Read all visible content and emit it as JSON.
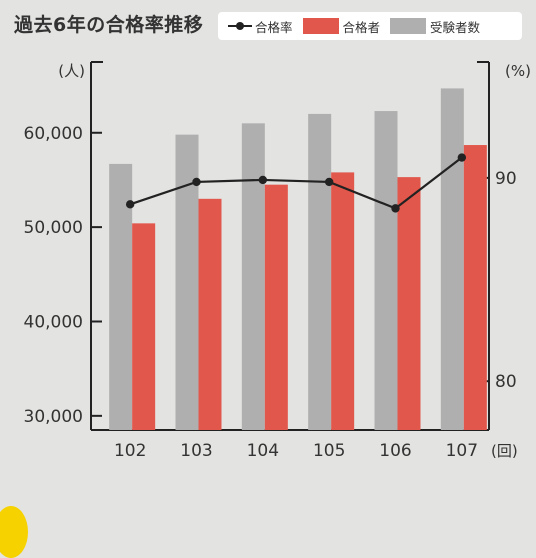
{
  "title": "過去6年の合格率推移",
  "legend": {
    "rate": "合格率",
    "passers": "合格者",
    "examinees": "受験者数"
  },
  "colors": {
    "examinees": "#afafaf",
    "passers": "#e2574c",
    "rate": "#222222",
    "background": "#e3e3e1"
  },
  "chart_data": {
    "type": "bar",
    "categories": [
      "102",
      "103",
      "104",
      "105",
      "106",
      "107"
    ],
    "series": [
      {
        "name": "受験者数",
        "axis": "left",
        "values": [
          56700,
          59800,
          61000,
          62000,
          62300,
          64700
        ]
      },
      {
        "name": "合格者",
        "axis": "left",
        "values": [
          50400,
          53000,
          54500,
          55800,
          55300,
          58700
        ]
      },
      {
        "name": "合格率",
        "type": "line",
        "axis": "right",
        "values": [
          88.7,
          89.8,
          89.9,
          89.8,
          88.5,
          91.0
        ]
      }
    ],
    "xlabel": "(回)",
    "ylabel_left": "(人)",
    "ylabel_right": "(%)",
    "left_axis": {
      "range": [
        28500,
        67500
      ],
      "ticks": [
        30000,
        40000,
        50000,
        60000
      ],
      "tick_labels": [
        "30,000",
        "40,000",
        "50,000",
        "60,000"
      ]
    },
    "right_axis": {
      "range": [
        77.6,
        95.7
      ],
      "ticks": [
        80,
        90
      ],
      "tick_labels": [
        "80",
        "90"
      ]
    },
    "grid": false,
    "legend_position": "top-right"
  }
}
